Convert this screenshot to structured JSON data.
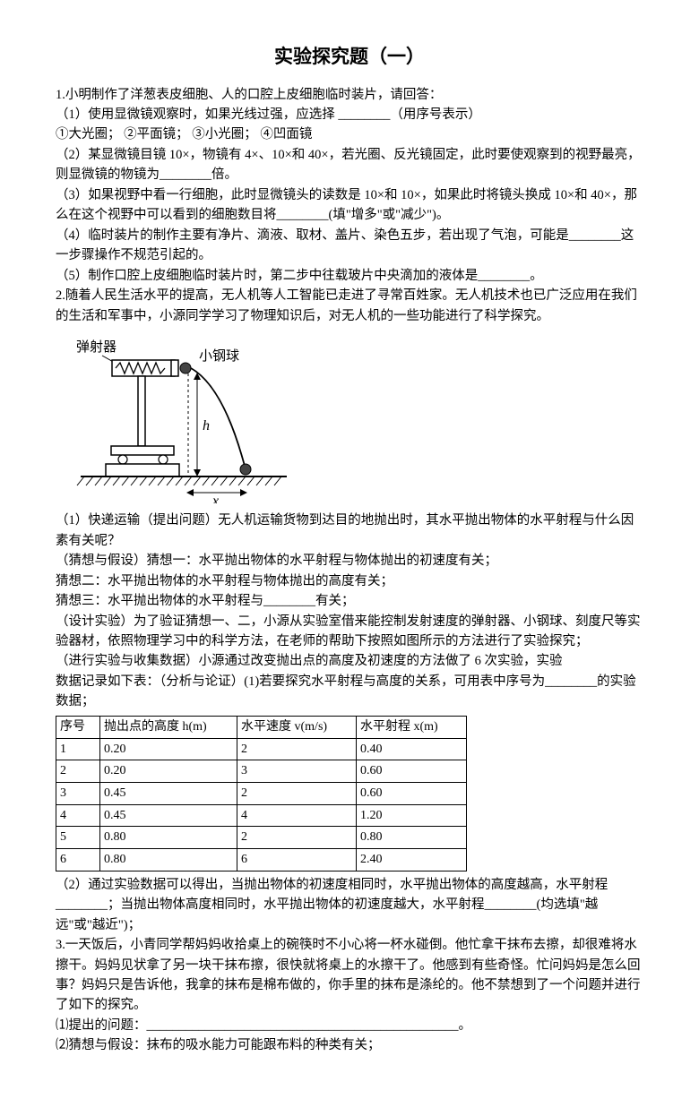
{
  "title": "实验探究题（一）",
  "q1": {
    "stem": "1.小明制作了洋葱表皮细胞、人的口腔上皮细胞临时装片，请回答：",
    "p1": "（1）使用显微镜观察时，如果光线过强，应选择 ________（用序号表示）",
    "opts": "①大光圈；    ②平面镜；    ③小光圈；    ④凹面镜",
    "p2": "（2）某显微镜目镜 10×，物镜有 4×、10×和 40×，若光圈、反光镜固定，此时要使观察到的视野最亮，则显微镜的物镜为________倍。",
    "p3": "（3）如果视野中看一行细胞，此时显微镜头的读数是 10×和 10×，如果此时将镜头换成 10×和 40×，那么在这个视野中可以看到的细胞数目将________(填\"增多\"或\"减少\")。",
    "p4": "（4）临时装片的制作主要有净片、滴液、取材、盖片、染色五步，若出现了气泡，可能是________这一步骤操作不规范引起的。",
    "p5": "（5）制作口腔上皮细胞临时装片时，第二步中往载玻片中央滴加的液体是________。"
  },
  "q2": {
    "stem": "2.随着人民生活水平的提高，无人机等人工智能已走进了寻常百姓家。无人机技术也已广泛应用在我们的生活和军事中，小源同学学习了物理知识后，对无人机的一些功能进行了科学探究。",
    "label_ejector": "弹射器",
    "label_ball": "小钢球",
    "label_h": "h",
    "label_x": "x",
    "p1": "（1）快递运输（提出问题）无人机运输货物到达目的地抛出时，其水平抛出物体的水平射程与什么因素有关呢？",
    "p2": "（猜想与假设）猜想一：水平抛出物体的水平射程与物体抛出的初速度有关；",
    "p3": "猜想二：水平抛出物体的水平射程与物体抛出的高度有关；",
    "p4": "猜想三：水平抛出物体的水平射程与________有关；",
    "p5": "（设计实验）为了验证猜想一、二，小源从实验室借来能控制发射速度的弹射器、小钢球、刻度尺等实验器材，依照物理学习中的科学方法，在老师的帮助下按照如图所示的方法进行了实验探究；",
    "p6": "（进行实验与收集数据）小源通过改变抛出点的高度及初速度的方法做了 6 次实验，实验",
    "p7": "数据记录如下表：（分析与论证）(1)若要探究水平射程与高度的关系，可用表中序号为________的实验数据；",
    "table": {
      "headers": [
        "序号",
        "抛出点的高度 h(m)",
        "水平速度 v(m/s)",
        "水平射程 x(m)"
      ],
      "rows": [
        [
          "1",
          "0.20",
          "2",
          "0.40"
        ],
        [
          "2",
          "0.20",
          "3",
          "0.60"
        ],
        [
          "3",
          "0.45",
          "2",
          "0.60"
        ],
        [
          "4",
          "0.45",
          "4",
          "1.20"
        ],
        [
          "5",
          "0.80",
          "2",
          "0.80"
        ],
        [
          "6",
          "0.80",
          "6",
          "2.40"
        ]
      ]
    },
    "p8": "（2）通过实验数据可以得出，当抛出物体的初速度相同时，水平抛出物体的高度越高，水平射程________；当抛出物体高度相同时，水平抛出物体的初速度越大，水平射程________(均选填\"越远\"或\"越近\")；"
  },
  "q3": {
    "stem": "3.一天饭后，小青同学帮妈妈收拾桌上的碗筷时不小心将一杯水碰倒。他忙拿干抹布去擦，却很难将水擦干。妈妈见状拿了另一块干抹布擦，很快就将桌上的水擦干了。他感到有些奇怪。忙问妈妈是怎么回事？妈妈只是告诉他，我拿的抹布是棉布做的，你手里的抹布是涤纶的。他不禁想到了一个问题并进行了如下的探究。",
    "p1": "⑴提出的问题：________________________________________________。",
    "p2": "⑵猜想与假设：抹布的吸水能力可能跟布料的种类有关；"
  }
}
